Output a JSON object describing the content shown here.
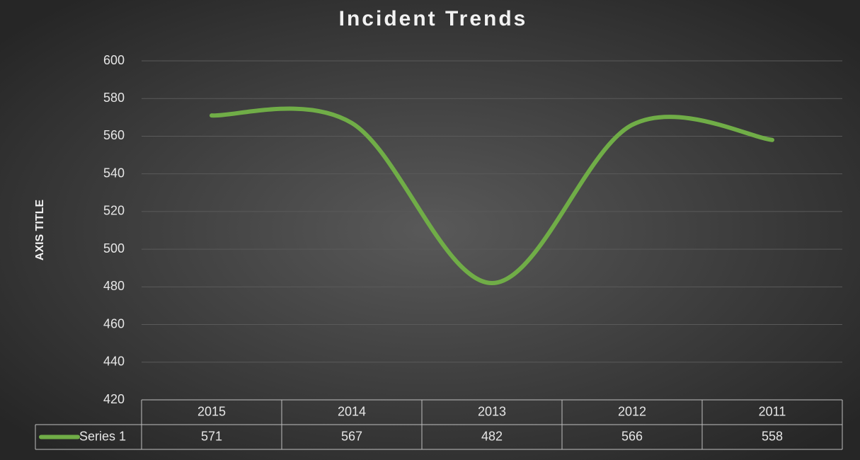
{
  "chart_data": {
    "type": "line",
    "title": "Incident Trends",
    "y_label": "AXIS TITLE",
    "categories": [
      "2015",
      "2014",
      "2013",
      "2012",
      "2011"
    ],
    "series": [
      {
        "name": "Series 1",
        "color": "#70ad47",
        "values": [
          571,
          567,
          482,
          566,
          558
        ]
      }
    ],
    "ylim": [
      420,
      600
    ],
    "yticks": [
      420,
      440,
      460,
      480,
      500,
      520,
      540,
      560,
      580,
      600
    ],
    "grid": true,
    "smooth": true,
    "data_table": true
  }
}
